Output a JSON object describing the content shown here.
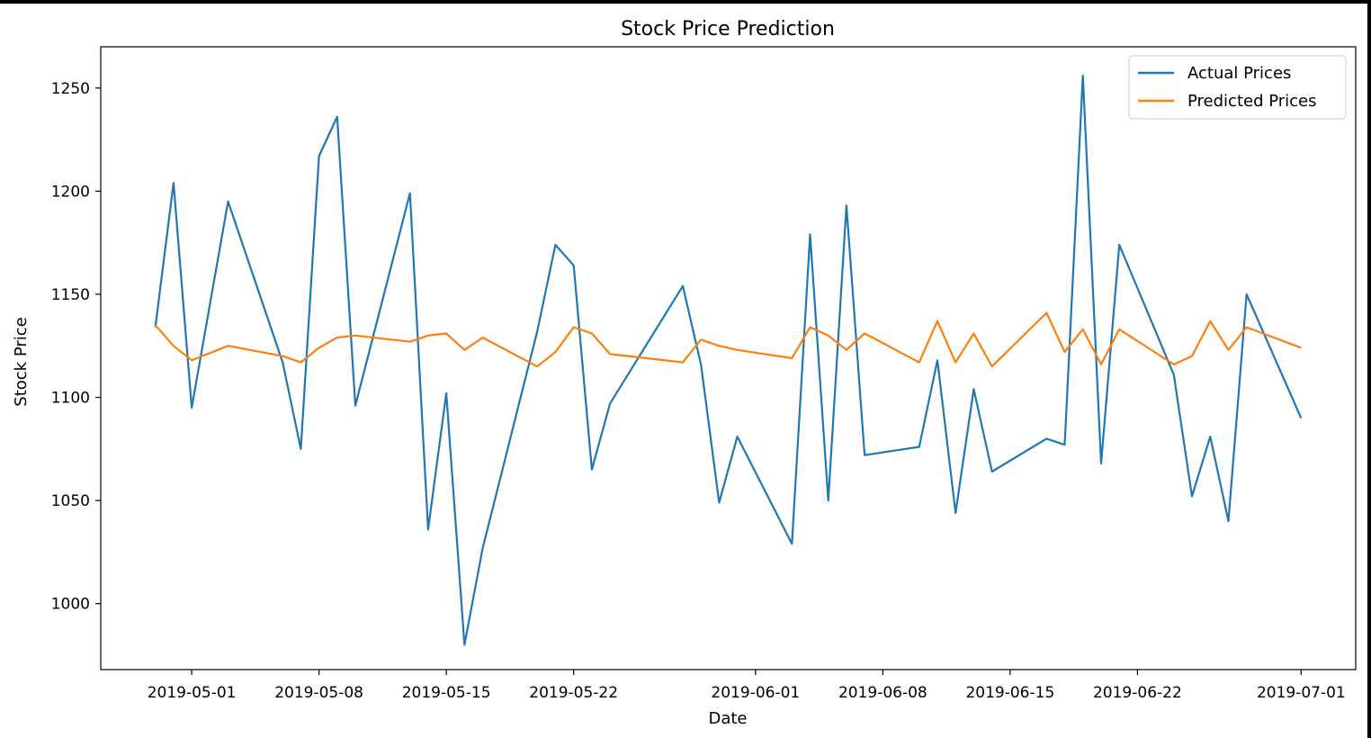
{
  "chart_data": {
    "type": "line",
    "title": "Stock Price Prediction",
    "xlabel": "Date",
    "ylabel": "Stock Price",
    "x_ticks": [
      "2019-05-01",
      "2019-05-08",
      "2019-05-15",
      "2019-05-22",
      "2019-06-01",
      "2019-06-08",
      "2019-06-15",
      "2019-06-22",
      "2019-07-01"
    ],
    "y_ticks": [
      1000,
      1050,
      1100,
      1150,
      1200,
      1250
    ],
    "xlim": [
      "2019-04-26",
      "2019-07-04"
    ],
    "ylim": [
      968,
      1270
    ],
    "grid": false,
    "legend_position": "top-right",
    "x": [
      "2019-04-29",
      "2019-04-30",
      "2019-05-01",
      "2019-05-03",
      "2019-05-06",
      "2019-05-07",
      "2019-05-08",
      "2019-05-09",
      "2019-05-10",
      "2019-05-13",
      "2019-05-14",
      "2019-05-15",
      "2019-05-16",
      "2019-05-17",
      "2019-05-20",
      "2019-05-21",
      "2019-05-22",
      "2019-05-23",
      "2019-05-24",
      "2019-05-28",
      "2019-05-29",
      "2019-05-30",
      "2019-05-31",
      "2019-06-03",
      "2019-06-04",
      "2019-06-05",
      "2019-06-06",
      "2019-06-07",
      "2019-06-10",
      "2019-06-11",
      "2019-06-12",
      "2019-06-13",
      "2019-06-14",
      "2019-06-17",
      "2019-06-18",
      "2019-06-19",
      "2019-06-20",
      "2019-06-21",
      "2019-06-24",
      "2019-06-25",
      "2019-06-26",
      "2019-06-27",
      "2019-06-28",
      "2019-07-01"
    ],
    "series": [
      {
        "name": "Actual Prices",
        "color": "#1f77b4",
        "values": [
          1134,
          1204,
          1095,
          1195,
          1117,
          1075,
          1217,
          1236,
          1096,
          1199,
          1036,
          1102,
          980,
          1027,
          1132,
          1174,
          1164,
          1065,
          1097,
          1154,
          1116,
          1049,
          1081,
          1029,
          1179,
          1050,
          1193,
          1072,
          1076,
          1118,
          1044,
          1104,
          1064,
          1080,
          1077,
          1256,
          1068,
          1174,
          1111,
          1052,
          1081,
          1040,
          1150,
          1090
        ]
      },
      {
        "name": "Predicted Prices",
        "color": "#ff7f0e",
        "values": [
          1135,
          1125,
          1118,
          1125,
          1120,
          1117,
          1124,
          1129,
          1130,
          1127,
          1130,
          1131,
          1123,
          1129,
          1115,
          1122,
          1134,
          1131,
          1121,
          1117,
          1128,
          1125,
          1123,
          1119,
          1134,
          1130,
          1123,
          1131,
          1117,
          1137,
          1117,
          1131,
          1115,
          1141,
          1122,
          1133,
          1116,
          1133,
          1116,
          1120,
          1137,
          1123,
          1134,
          1124
        ]
      }
    ]
  }
}
